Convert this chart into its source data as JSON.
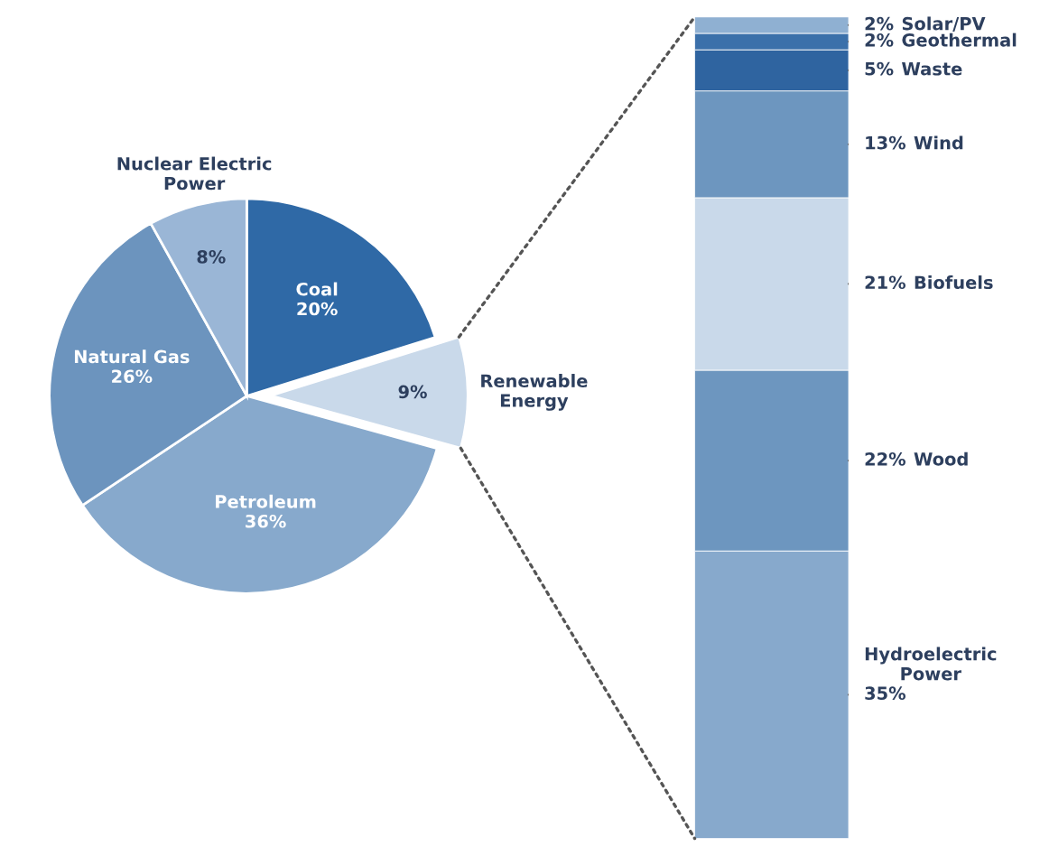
{
  "chart_data": [
    {
      "type": "pie",
      "categories": [
        "Coal",
        "Renewable\nEnergy",
        "Petroleum",
        "Natural Gas",
        "Nuclear Electric\nPower"
      ],
      "values": [
        20,
        9,
        36,
        26,
        8
      ],
      "value_labels": [
        "20%",
        "9%",
        "36%",
        "26%",
        "8%"
      ],
      "colors": [
        "#2f69a6",
        "#c9d9ea",
        "#87a9cc",
        "#6c94be",
        "#9ab6d6"
      ]
    },
    {
      "type": "bar",
      "stacked": true,
      "categories": [
        null
      ],
      "series": [
        {
          "name": "Hydroelectric\nPower",
          "color": "#87a9cc",
          "values": [
            35
          ],
          "value_labels": [
            "35%"
          ]
        },
        {
          "name": "Wood",
          "color": "#6d96bf",
          "values": [
            22
          ],
          "value_labels": [
            "22%"
          ]
        },
        {
          "name": "Biofuels",
          "color": "#c9d9ea",
          "values": [
            21
          ],
          "value_labels": [
            "21%"
          ]
        },
        {
          "name": "Wind",
          "color": "#6d96bf",
          "values": [
            13
          ],
          "value_labels": [
            "13%"
          ]
        },
        {
          "name": "Waste",
          "color": "#2f64a0",
          "values": [
            5
          ],
          "value_labels": [
            "5%"
          ]
        },
        {
          "name": "Geothermal",
          "color": "#3b70aa",
          "values": [
            2
          ],
          "value_labels": [
            "2%"
          ]
        },
        {
          "name": "Solar/PV",
          "color": "#8fb0d2",
          "values": [
            2
          ],
          "value_labels": [
            "2%"
          ]
        }
      ]
    }
  ]
}
